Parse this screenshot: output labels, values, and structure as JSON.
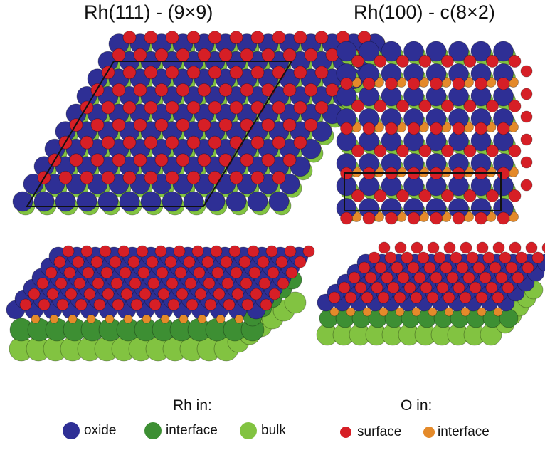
{
  "titles": {
    "rh111": "Rh(111) - (9×9)",
    "rh100": "Rh(100) - c(8×2)"
  },
  "legend": {
    "rh_heading": "Rh in:",
    "o_heading": "O in:",
    "rh_items": [
      {
        "label": "oxide",
        "color": "#2e2f95"
      },
      {
        "label": "interface",
        "color": "#3d8f33"
      },
      {
        "label": "bulk",
        "color": "#82c341"
      }
    ],
    "o_items": [
      {
        "label": "surface",
        "color": "#d61f26"
      },
      {
        "label": "interface",
        "color": "#e48a2a"
      }
    ]
  },
  "colors": {
    "rh_oxide": "#2e2f95",
    "rh_interface": "#3d8f33",
    "rh_bulk": "#82c341",
    "o_surface": "#d61f26",
    "o_interface": "#e48a2a",
    "unit_cell": "#111111"
  }
}
